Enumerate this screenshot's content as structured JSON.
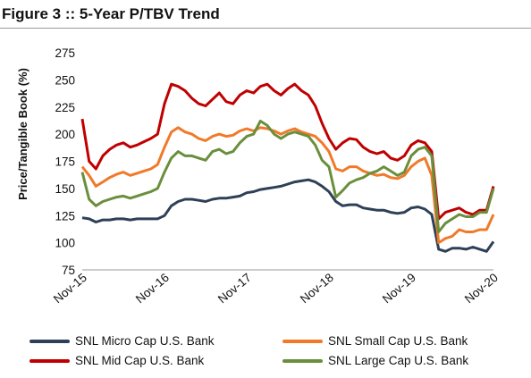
{
  "figure": {
    "title": "Figure 3 :: 5-Year P/TBV Trend"
  },
  "chart_data": {
    "type": "line",
    "ylabel": "Price/Tangible Book (%)",
    "xlabel": "",
    "ylim": [
      75,
      275
    ],
    "yticks": [
      75,
      100,
      125,
      150,
      175,
      200,
      225,
      250,
      275
    ],
    "xlim": [
      "2015-11",
      "2020-11"
    ],
    "xticks": [
      "Nov-15",
      "Nov-16",
      "Nov-17",
      "Nov-18",
      "Nov-19",
      "Nov-20"
    ],
    "grid": false,
    "legend_position": "bottom",
    "series": [
      {
        "name": "SNL Micro Cap U.S. Bank",
        "color": "#2e4057",
        "x": [
          "2015-11",
          "2015-12",
          "2016-01",
          "2016-02",
          "2016-03",
          "2016-04",
          "2016-05",
          "2016-06",
          "2016-07",
          "2016-08",
          "2016-09",
          "2016-10",
          "2016-11",
          "2016-12",
          "2017-01",
          "2017-02",
          "2017-03",
          "2017-04",
          "2017-05",
          "2017-06",
          "2017-07",
          "2017-08",
          "2017-09",
          "2017-10",
          "2017-11",
          "2017-12",
          "2018-01",
          "2018-02",
          "2018-03",
          "2018-04",
          "2018-05",
          "2018-06",
          "2018-07",
          "2018-08",
          "2018-09",
          "2018-10",
          "2018-11",
          "2018-12",
          "2019-01",
          "2019-02",
          "2019-03",
          "2019-04",
          "2019-05",
          "2019-06",
          "2019-07",
          "2019-08",
          "2019-09",
          "2019-10",
          "2019-11",
          "2019-12",
          "2020-01",
          "2020-02",
          "2020-03",
          "2020-04",
          "2020-05",
          "2020-06",
          "2020-07",
          "2020-08",
          "2020-09",
          "2020-10",
          "2020-11"
        ],
        "values": [
          123,
          122,
          119,
          121,
          121,
          122,
          122,
          121,
          122,
          122,
          122,
          122,
          125,
          134,
          138,
          140,
          140,
          139,
          138,
          140,
          141,
          141,
          142,
          143,
          146,
          147,
          149,
          150,
          151,
          152,
          154,
          156,
          157,
          158,
          156,
          152,
          147,
          138,
          134,
          135,
          135,
          132,
          131,
          130,
          130,
          128,
          127,
          128,
          132,
          133,
          131,
          126,
          94,
          92,
          95,
          95,
          94,
          96,
          94,
          92,
          101
        ]
      },
      {
        "name": "SNL Small Cap U.S. Bank",
        "color": "#f07a2a",
        "x": [
          "2015-11",
          "2015-12",
          "2016-01",
          "2016-02",
          "2016-03",
          "2016-04",
          "2016-05",
          "2016-06",
          "2016-07",
          "2016-08",
          "2016-09",
          "2016-10",
          "2016-11",
          "2016-12",
          "2017-01",
          "2017-02",
          "2017-03",
          "2017-04",
          "2017-05",
          "2017-06",
          "2017-07",
          "2017-08",
          "2017-09",
          "2017-10",
          "2017-11",
          "2017-12",
          "2018-01",
          "2018-02",
          "2018-03",
          "2018-04",
          "2018-05",
          "2018-06",
          "2018-07",
          "2018-08",
          "2018-09",
          "2018-10",
          "2018-11",
          "2018-12",
          "2019-01",
          "2019-02",
          "2019-03",
          "2019-04",
          "2019-05",
          "2019-06",
          "2019-07",
          "2019-08",
          "2019-09",
          "2019-10",
          "2019-11",
          "2019-12",
          "2020-01",
          "2020-02",
          "2020-03",
          "2020-04",
          "2020-05",
          "2020-06",
          "2020-07",
          "2020-08",
          "2020-09",
          "2020-10",
          "2020-11"
        ],
        "values": [
          170,
          162,
          152,
          156,
          160,
          163,
          165,
          162,
          164,
          166,
          168,
          172,
          188,
          202,
          206,
          202,
          200,
          196,
          194,
          198,
          200,
          198,
          199,
          203,
          205,
          203,
          206,
          205,
          203,
          200,
          203,
          205,
          202,
          200,
          198,
          192,
          184,
          168,
          166,
          170,
          170,
          166,
          164,
          162,
          163,
          160,
          159,
          162,
          170,
          175,
          178,
          162,
          100,
          104,
          106,
          112,
          110,
          110,
          112,
          112,
          126
        ]
      },
      {
        "name": "SNL Mid Cap U.S. Bank",
        "color": "#c00000",
        "x": [
          "2015-11",
          "2015-12",
          "2016-01",
          "2016-02",
          "2016-03",
          "2016-04",
          "2016-05",
          "2016-06",
          "2016-07",
          "2016-08",
          "2016-09",
          "2016-10",
          "2016-11",
          "2016-12",
          "2017-01",
          "2017-02",
          "2017-03",
          "2017-04",
          "2017-05",
          "2017-06",
          "2017-07",
          "2017-08",
          "2017-09",
          "2017-10",
          "2017-11",
          "2017-12",
          "2018-01",
          "2018-02",
          "2018-03",
          "2018-04",
          "2018-05",
          "2018-06",
          "2018-07",
          "2018-08",
          "2018-09",
          "2018-10",
          "2018-11",
          "2018-12",
          "2019-01",
          "2019-02",
          "2019-03",
          "2019-04",
          "2019-05",
          "2019-06",
          "2019-07",
          "2019-08",
          "2019-09",
          "2019-10",
          "2019-11",
          "2019-12",
          "2020-01",
          "2020-02",
          "2020-03",
          "2020-04",
          "2020-05",
          "2020-06",
          "2020-07",
          "2020-08",
          "2020-09",
          "2020-10",
          "2020-11"
        ],
        "values": [
          214,
          175,
          168,
          180,
          186,
          190,
          192,
          188,
          190,
          193,
          196,
          200,
          228,
          246,
          244,
          240,
          233,
          228,
          226,
          232,
          238,
          230,
          228,
          236,
          240,
          238,
          244,
          246,
          240,
          236,
          242,
          246,
          240,
          236,
          226,
          210,
          196,
          186,
          192,
          196,
          195,
          188,
          184,
          182,
          184,
          178,
          176,
          180,
          190,
          194,
          192,
          184,
          122,
          128,
          130,
          132,
          128,
          126,
          130,
          130,
          152
        ]
      },
      {
        "name": "SNL Large Cap U.S. Bank",
        "color": "#6a8f3c",
        "x": [
          "2015-11",
          "2015-12",
          "2016-01",
          "2016-02",
          "2016-03",
          "2016-04",
          "2016-05",
          "2016-06",
          "2016-07",
          "2016-08",
          "2016-09",
          "2016-10",
          "2016-11",
          "2016-12",
          "2017-01",
          "2017-02",
          "2017-03",
          "2017-04",
          "2017-05",
          "2017-06",
          "2017-07",
          "2017-08",
          "2017-09",
          "2017-10",
          "2017-11",
          "2017-12",
          "2018-01",
          "2018-02",
          "2018-03",
          "2018-04",
          "2018-05",
          "2018-06",
          "2018-07",
          "2018-08",
          "2018-09",
          "2018-10",
          "2018-11",
          "2018-12",
          "2019-01",
          "2019-02",
          "2019-03",
          "2019-04",
          "2019-05",
          "2019-06",
          "2019-07",
          "2019-08",
          "2019-09",
          "2019-10",
          "2019-11",
          "2019-12",
          "2020-01",
          "2020-02",
          "2020-03",
          "2020-04",
          "2020-05",
          "2020-06",
          "2020-07",
          "2020-08",
          "2020-09",
          "2020-10",
          "2020-11"
        ],
        "values": [
          165,
          140,
          134,
          138,
          140,
          142,
          143,
          141,
          143,
          145,
          147,
          150,
          165,
          178,
          184,
          180,
          180,
          178,
          176,
          184,
          186,
          182,
          184,
          192,
          198,
          200,
          212,
          208,
          200,
          196,
          200,
          202,
          200,
          198,
          190,
          176,
          170,
          142,
          148,
          155,
          158,
          160,
          164,
          166,
          170,
          166,
          162,
          165,
          180,
          186,
          188,
          180,
          110,
          118,
          122,
          126,
          124,
          124,
          128,
          128,
          150
        ]
      }
    ]
  }
}
